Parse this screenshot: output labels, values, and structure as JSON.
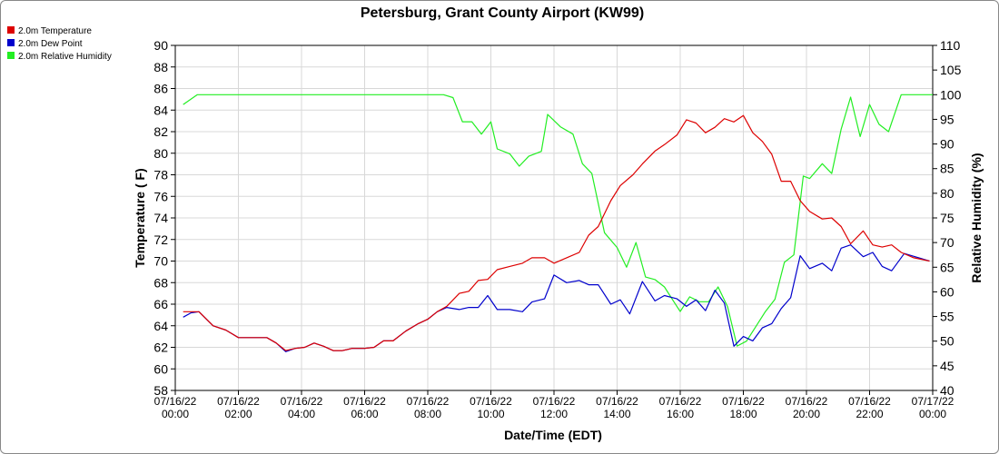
{
  "chart_data": {
    "type": "line",
    "title": "Petersburg, Grant County Airport (KW99)",
    "xlabel": "Date/Time (EDT)",
    "ylabel": "Temperature ( F)",
    "y2label": "Relative Humidity (%)",
    "ylim": [
      58,
      90
    ],
    "y2lim": [
      40,
      110
    ],
    "xlim_hours": [
      0,
      24
    ],
    "yticks": [
      58,
      60,
      62,
      64,
      66,
      68,
      70,
      72,
      74,
      76,
      78,
      80,
      82,
      84,
      86,
      88,
      90
    ],
    "y2ticks": [
      40,
      45,
      50,
      55,
      60,
      65,
      70,
      75,
      80,
      85,
      90,
      95,
      100,
      105,
      110
    ],
    "xticks": [
      {
        "date": "07/16/22",
        "time": "00:00"
      },
      {
        "date": "07/16/22",
        "time": "02:00"
      },
      {
        "date": "07/16/22",
        "time": "04:00"
      },
      {
        "date": "07/16/22",
        "time": "06:00"
      },
      {
        "date": "07/16/22",
        "time": "08:00"
      },
      {
        "date": "07/16/22",
        "time": "10:00"
      },
      {
        "date": "07/16/22",
        "time": "12:00"
      },
      {
        "date": "07/16/22",
        "time": "14:00"
      },
      {
        "date": "07/16/22",
        "time": "16:00"
      },
      {
        "date": "07/16/22",
        "time": "18:00"
      },
      {
        "date": "07/16/22",
        "time": "20:00"
      },
      {
        "date": "07/16/22",
        "time": "22:00"
      },
      {
        "date": "07/17/22",
        "time": "00:00"
      }
    ],
    "grid": true,
    "legend_position": "top-left",
    "series": [
      {
        "name": "2.0m Temperature",
        "color": "#dd0000",
        "axis": "left",
        "points": [
          [
            0.25,
            65.3
          ],
          [
            0.5,
            65.3
          ],
          [
            0.75,
            65.3
          ],
          [
            1.2,
            64.0
          ],
          [
            1.6,
            63.6
          ],
          [
            2.0,
            62.9
          ],
          [
            2.5,
            62.9
          ],
          [
            2.9,
            62.9
          ],
          [
            3.2,
            62.4
          ],
          [
            3.5,
            61.7
          ],
          [
            3.8,
            61.9
          ],
          [
            4.1,
            62.0
          ],
          [
            4.4,
            62.4
          ],
          [
            4.7,
            62.1
          ],
          [
            5.0,
            61.7
          ],
          [
            5.3,
            61.7
          ],
          [
            5.6,
            61.9
          ],
          [
            6.0,
            61.9
          ],
          [
            6.3,
            62.0
          ],
          [
            6.6,
            62.6
          ],
          [
            6.9,
            62.6
          ],
          [
            7.3,
            63.5
          ],
          [
            7.7,
            64.2
          ],
          [
            8.0,
            64.6
          ],
          [
            8.3,
            65.3
          ],
          [
            8.6,
            65.8
          ],
          [
            9.0,
            67.0
          ],
          [
            9.3,
            67.2
          ],
          [
            9.6,
            68.2
          ],
          [
            9.9,
            68.3
          ],
          [
            10.2,
            69.2
          ],
          [
            10.6,
            69.5
          ],
          [
            11.0,
            69.8
          ],
          [
            11.3,
            70.3
          ],
          [
            11.7,
            70.3
          ],
          [
            12.0,
            69.8
          ],
          [
            12.4,
            70.3
          ],
          [
            12.8,
            70.8
          ],
          [
            13.1,
            72.4
          ],
          [
            13.4,
            73.2
          ],
          [
            13.8,
            75.6
          ],
          [
            14.1,
            77.0
          ],
          [
            14.5,
            78.0
          ],
          [
            14.8,
            79.0
          ],
          [
            15.2,
            80.2
          ],
          [
            15.5,
            80.8
          ],
          [
            15.9,
            81.7
          ],
          [
            16.2,
            83.1
          ],
          [
            16.5,
            82.8
          ],
          [
            16.8,
            81.9
          ],
          [
            17.1,
            82.4
          ],
          [
            17.4,
            83.2
          ],
          [
            17.7,
            82.9
          ],
          [
            18.0,
            83.5
          ],
          [
            18.3,
            81.9
          ],
          [
            18.6,
            81.1
          ],
          [
            18.9,
            79.9
          ],
          [
            19.2,
            77.4
          ],
          [
            19.5,
            77.4
          ],
          [
            19.8,
            75.6
          ],
          [
            20.1,
            74.6
          ],
          [
            20.5,
            73.9
          ],
          [
            20.8,
            74.0
          ],
          [
            21.1,
            73.2
          ],
          [
            21.4,
            71.6
          ],
          [
            21.8,
            72.8
          ],
          [
            22.1,
            71.5
          ],
          [
            22.4,
            71.3
          ],
          [
            22.7,
            71.5
          ],
          [
            23.0,
            70.8
          ],
          [
            23.4,
            70.3
          ],
          [
            23.9,
            70.0
          ]
        ]
      },
      {
        "name": "2.0m Dew Point",
        "color": "#0000cc",
        "axis": "left",
        "points": [
          [
            0.25,
            64.8
          ],
          [
            0.5,
            65.2
          ],
          [
            0.75,
            65.3
          ],
          [
            1.2,
            64.0
          ],
          [
            1.6,
            63.6
          ],
          [
            2.0,
            62.9
          ],
          [
            2.5,
            62.9
          ],
          [
            2.9,
            62.9
          ],
          [
            3.2,
            62.4
          ],
          [
            3.5,
            61.6
          ],
          [
            3.8,
            61.9
          ],
          [
            4.1,
            62.0
          ],
          [
            4.4,
            62.4
          ],
          [
            4.7,
            62.1
          ],
          [
            5.0,
            61.7
          ],
          [
            5.3,
            61.7
          ],
          [
            5.6,
            61.9
          ],
          [
            6.0,
            61.9
          ],
          [
            6.3,
            62.0
          ],
          [
            6.6,
            62.6
          ],
          [
            6.9,
            62.6
          ],
          [
            7.3,
            63.5
          ],
          [
            7.7,
            64.2
          ],
          [
            8.0,
            64.6
          ],
          [
            8.3,
            65.3
          ],
          [
            8.6,
            65.7
          ],
          [
            9.0,
            65.5
          ],
          [
            9.3,
            65.7
          ],
          [
            9.6,
            65.7
          ],
          [
            9.9,
            66.8
          ],
          [
            10.2,
            65.5
          ],
          [
            10.6,
            65.5
          ],
          [
            11.0,
            65.3
          ],
          [
            11.3,
            66.2
          ],
          [
            11.7,
            66.5
          ],
          [
            12.0,
            68.7
          ],
          [
            12.4,
            68.0
          ],
          [
            12.8,
            68.2
          ],
          [
            13.1,
            67.8
          ],
          [
            13.4,
            67.8
          ],
          [
            13.8,
            66.0
          ],
          [
            14.1,
            66.4
          ],
          [
            14.4,
            65.1
          ],
          [
            14.8,
            68.1
          ],
          [
            15.2,
            66.3
          ],
          [
            15.5,
            66.8
          ],
          [
            15.9,
            66.5
          ],
          [
            16.2,
            65.8
          ],
          [
            16.5,
            66.4
          ],
          [
            16.8,
            65.4
          ],
          [
            17.1,
            67.3
          ],
          [
            17.4,
            66.1
          ],
          [
            17.7,
            62.1
          ],
          [
            18.0,
            63.0
          ],
          [
            18.3,
            62.6
          ],
          [
            18.6,
            63.8
          ],
          [
            18.9,
            64.2
          ],
          [
            19.2,
            65.6
          ],
          [
            19.5,
            66.6
          ],
          [
            19.8,
            70.5
          ],
          [
            20.1,
            69.3
          ],
          [
            20.5,
            69.8
          ],
          [
            20.8,
            69.1
          ],
          [
            21.1,
            71.2
          ],
          [
            21.4,
            71.5
          ],
          [
            21.8,
            70.4
          ],
          [
            22.1,
            70.8
          ],
          [
            22.4,
            69.5
          ],
          [
            22.7,
            69.1
          ],
          [
            23.1,
            70.7
          ],
          [
            23.9,
            70.0
          ]
        ]
      },
      {
        "name": "2.0m Relative Humidity",
        "color": "#22ee22",
        "axis": "right",
        "points": [
          [
            0.25,
            98
          ],
          [
            0.7,
            100
          ],
          [
            2.0,
            100
          ],
          [
            4.0,
            100
          ],
          [
            6.0,
            100
          ],
          [
            7.0,
            100
          ],
          [
            8.0,
            100
          ],
          [
            8.5,
            100
          ],
          [
            8.8,
            99.4
          ],
          [
            9.1,
            94.5
          ],
          [
            9.4,
            94.5
          ],
          [
            9.7,
            92.0
          ],
          [
            10.0,
            94.5
          ],
          [
            10.2,
            89.0
          ],
          [
            10.6,
            88.0
          ],
          [
            10.9,
            85.5
          ],
          [
            11.2,
            87.5
          ],
          [
            11.6,
            88.5
          ],
          [
            11.8,
            96.0
          ],
          [
            12.2,
            93.5
          ],
          [
            12.6,
            92.0
          ],
          [
            12.9,
            86.0
          ],
          [
            13.2,
            84.0
          ],
          [
            13.6,
            72.0
          ],
          [
            14.0,
            69.0
          ],
          [
            14.3,
            65.0
          ],
          [
            14.6,
            70.0
          ],
          [
            14.9,
            63.0
          ],
          [
            15.2,
            62.5
          ],
          [
            15.5,
            61.0
          ],
          [
            15.8,
            58.0
          ],
          [
            16.0,
            56.0
          ],
          [
            16.3,
            59.0
          ],
          [
            16.6,
            58.0
          ],
          [
            16.9,
            58.0
          ],
          [
            17.2,
            61.0
          ],
          [
            17.5,
            57.0
          ],
          [
            17.8,
            49.0
          ],
          [
            18.1,
            50.0
          ],
          [
            18.4,
            53.0
          ],
          [
            18.7,
            56.0
          ],
          [
            19.0,
            58.5
          ],
          [
            19.3,
            66.0
          ],
          [
            19.6,
            67.5
          ],
          [
            19.9,
            83.5
          ],
          [
            20.1,
            83.0
          ],
          [
            20.5,
            86.0
          ],
          [
            20.8,
            84.0
          ],
          [
            21.1,
            93.0
          ],
          [
            21.4,
            99.5
          ],
          [
            21.7,
            91.5
          ],
          [
            22.0,
            98.0
          ],
          [
            22.3,
            94.0
          ],
          [
            22.6,
            92.5
          ],
          [
            23.0,
            100
          ],
          [
            23.5,
            100
          ],
          [
            24.0,
            100
          ]
        ]
      }
    ]
  }
}
